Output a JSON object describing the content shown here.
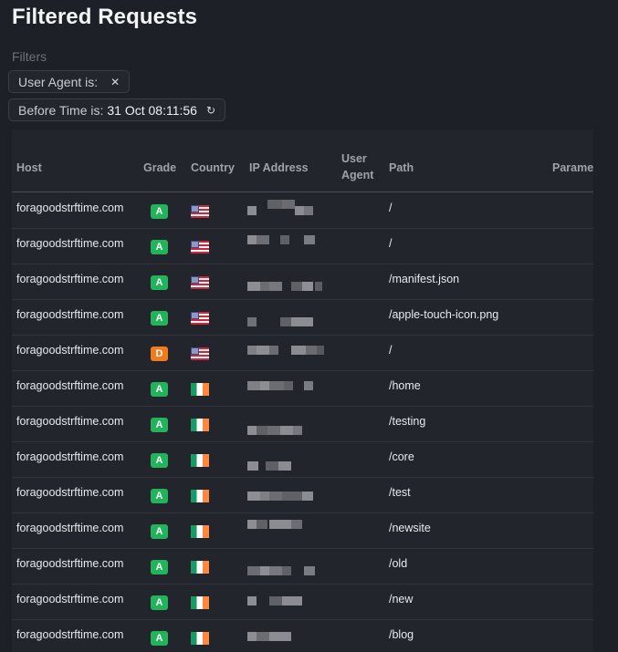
{
  "page": {
    "title": "Filtered Requests",
    "filters_label": "Filters"
  },
  "filters": [
    {
      "label": "User Agent is:",
      "value": "",
      "icon": "close-icon",
      "glyph": "✕"
    },
    {
      "label": "Before Time is:",
      "value": "31 Oct 08:11:56",
      "icon": "refresh-icon",
      "glyph": "↻"
    }
  ],
  "table": {
    "columns": {
      "host": "Host",
      "grade": "Grade",
      "country": "Country",
      "ip": "IP Address",
      "user_agent_line1": "User",
      "user_agent_line2": "Agent",
      "path": "Path",
      "params": "Parame"
    },
    "rows": [
      {
        "host": "foragoodstrftime.com",
        "grade": "A",
        "country": "us-flag-icon",
        "ip": "",
        "user_agent": "",
        "path": "/"
      },
      {
        "host": "foragoodstrftime.com",
        "grade": "A",
        "country": "us-flag-icon",
        "ip": "",
        "user_agent": "",
        "path": "/"
      },
      {
        "host": "foragoodstrftime.com",
        "grade": "A",
        "country": "us-flag-icon",
        "ip": "",
        "user_agent": "",
        "path": "/manifest.json"
      },
      {
        "host": "foragoodstrftime.com",
        "grade": "A",
        "country": "us-flag-icon",
        "ip": "",
        "user_agent": "",
        "path": "/apple-touch-icon.png"
      },
      {
        "host": "foragoodstrftime.com",
        "grade": "D",
        "country": "us-flag-icon",
        "ip": "",
        "user_agent": "",
        "path": "/"
      },
      {
        "host": "foragoodstrftime.com",
        "grade": "A",
        "country": "ie-flag-icon",
        "ip": "",
        "user_agent": "",
        "path": "/home"
      },
      {
        "host": "foragoodstrftime.com",
        "grade": "A",
        "country": "ie-flag-icon",
        "ip": "",
        "user_agent": "",
        "path": "/testing"
      },
      {
        "host": "foragoodstrftime.com",
        "grade": "A",
        "country": "ie-flag-icon",
        "ip": "",
        "user_agent": "",
        "path": "/core"
      },
      {
        "host": "foragoodstrftime.com",
        "grade": "A",
        "country": "ie-flag-icon",
        "ip": "",
        "user_agent": "",
        "path": "/test"
      },
      {
        "host": "foragoodstrftime.com",
        "grade": "A",
        "country": "ie-flag-icon",
        "ip": "",
        "user_agent": "",
        "path": "/newsite"
      },
      {
        "host": "foragoodstrftime.com",
        "grade": "A",
        "country": "ie-flag-icon",
        "ip": "",
        "user_agent": "",
        "path": "/old"
      },
      {
        "host": "foragoodstrftime.com",
        "grade": "A",
        "country": "ie-flag-icon",
        "ip": "",
        "user_agent": "",
        "path": "/new"
      },
      {
        "host": "foragoodstrftime.com",
        "grade": "A",
        "country": "ie-flag-icon",
        "ip": "",
        "user_agent": "",
        "path": "/blog"
      }
    ]
  },
  "colors": {
    "grade_A": "#22b45a",
    "grade_D": "#f07c1e",
    "background": "#1e2028",
    "table_background": "#23252c"
  }
}
